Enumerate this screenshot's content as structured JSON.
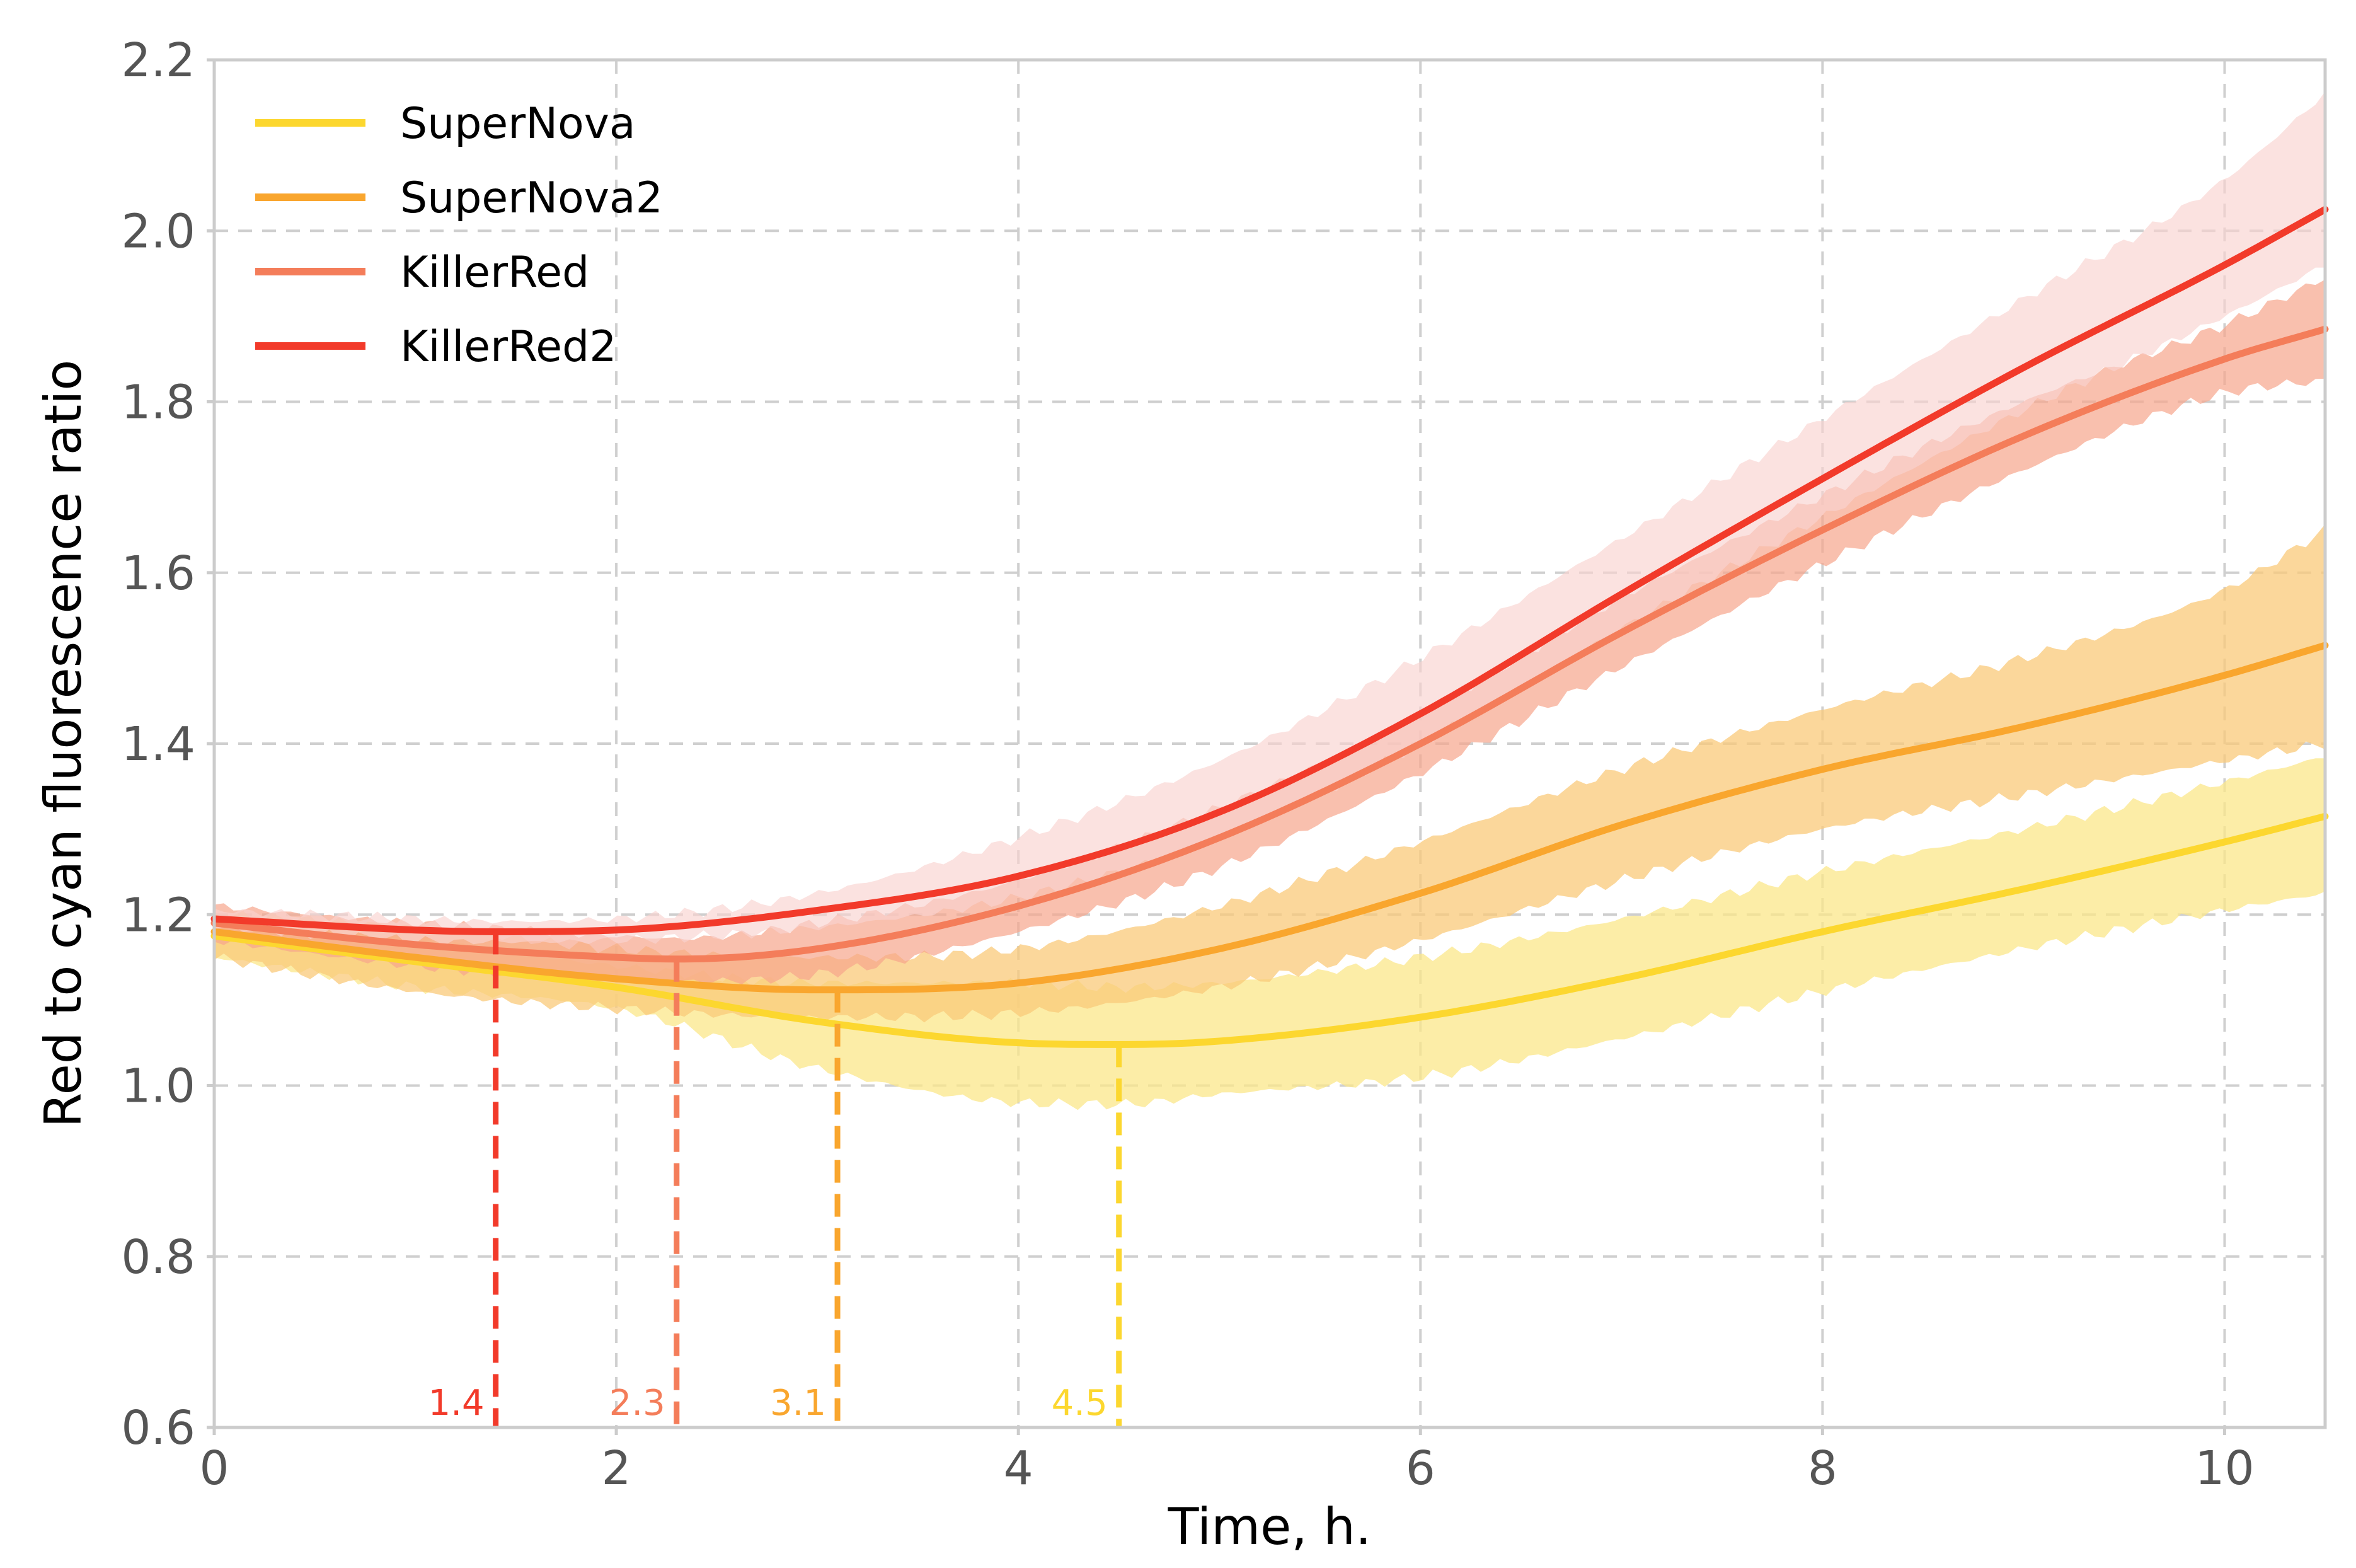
{
  "chart_data": {
    "type": "line",
    "title": "",
    "xlabel": "Time, h.",
    "ylabel": "Red to cyan fluorescence ratio",
    "xlim": [
      0,
      10.5
    ],
    "ylim": [
      0.6,
      2.2
    ],
    "xticks": [
      0,
      2,
      4,
      6,
      8,
      10
    ],
    "yticks": [
      0.6,
      0.8,
      1.0,
      1.2,
      1.4,
      1.6,
      1.8,
      2.0,
      2.2
    ],
    "xtick_labels": [
      "0",
      "2",
      "4",
      "6",
      "8",
      "10"
    ],
    "ytick_labels": [
      "0.6",
      "0.8",
      "1.0",
      "1.2",
      "1.4",
      "1.6",
      "1.8",
      "2.0",
      "2.2"
    ],
    "grid": true,
    "legend_position": "top-left",
    "series": [
      {
        "name": "SuperNova",
        "color": "#FCD72F",
        "band_color": "#FBE78A",
        "x": [
          0,
          1,
          2,
          3,
          4,
          4.5,
          5,
          6,
          7,
          8,
          9,
          10,
          10.5
        ],
        "y": [
          1.175,
          1.145,
          1.115,
          1.075,
          1.05,
          1.048,
          1.052,
          1.08,
          1.125,
          1.18,
          1.23,
          1.285,
          1.315
        ],
        "lower": [
          1.15,
          1.115,
          1.09,
          1.02,
          0.98,
          0.978,
          0.99,
          1.01,
          1.055,
          1.11,
          1.16,
          1.205,
          1.225
        ],
        "upper": [
          1.195,
          1.17,
          1.14,
          1.12,
          1.12,
          1.115,
          1.12,
          1.15,
          1.195,
          1.25,
          1.3,
          1.355,
          1.385
        ],
        "min_time": 4.5,
        "min_label": "4.5"
      },
      {
        "name": "SuperNova2",
        "color": "#F9A62E",
        "band_color": "#F9CA79",
        "x": [
          0,
          1,
          2,
          3,
          3.1,
          4,
          5,
          6,
          7,
          8,
          9,
          10,
          10.5
        ],
        "y": [
          1.18,
          1.15,
          1.125,
          1.112,
          1.112,
          1.12,
          1.16,
          1.225,
          1.305,
          1.37,
          1.42,
          1.48,
          1.515
        ],
        "lower": [
          1.15,
          1.11,
          1.09,
          1.08,
          1.08,
          1.085,
          1.115,
          1.17,
          1.24,
          1.3,
          1.34,
          1.38,
          1.4
        ],
        "upper": [
          1.2,
          1.185,
          1.16,
          1.15,
          1.15,
          1.16,
          1.21,
          1.285,
          1.37,
          1.44,
          1.5,
          1.58,
          1.65
        ],
        "min_time": 3.1,
        "min_label": "3.1"
      },
      {
        "name": "KillerRed",
        "color": "#F47D5A",
        "band_color": "#F6A58C",
        "x": [
          0,
          1,
          2,
          2.3,
          3,
          4,
          5,
          6,
          7,
          8,
          9,
          10,
          10.5
        ],
        "y": [
          1.19,
          1.165,
          1.15,
          1.148,
          1.16,
          1.21,
          1.29,
          1.4,
          1.53,
          1.65,
          1.76,
          1.85,
          1.885
        ],
        "lower": [
          1.17,
          1.14,
          1.125,
          1.122,
          1.13,
          1.18,
          1.255,
          1.365,
          1.49,
          1.61,
          1.72,
          1.81,
          1.825
        ],
        "upper": [
          1.21,
          1.19,
          1.175,
          1.172,
          1.19,
          1.24,
          1.325,
          1.435,
          1.57,
          1.69,
          1.8,
          1.89,
          1.945
        ],
        "min_time": 2.3,
        "min_label": "2.3"
      },
      {
        "name": "KillerRed2",
        "color": "#F23A2A",
        "band_color": "#F9D3D0",
        "x": [
          0,
          1,
          1.4,
          2,
          3,
          4,
          5,
          6,
          7,
          8,
          9,
          10,
          10.5
        ],
        "y": [
          1.195,
          1.182,
          1.18,
          1.182,
          1.205,
          1.245,
          1.32,
          1.435,
          1.575,
          1.71,
          1.84,
          1.96,
          2.025
        ],
        "lower": [
          1.185,
          1.17,
          1.168,
          1.17,
          1.185,
          1.22,
          1.29,
          1.4,
          1.535,
          1.665,
          1.79,
          1.9,
          1.96
        ],
        "upper": [
          1.205,
          1.195,
          1.192,
          1.195,
          1.225,
          1.29,
          1.38,
          1.5,
          1.64,
          1.78,
          1.92,
          2.06,
          2.16
        ],
        "min_time": 1.4,
        "min_label": "1.4"
      }
    ]
  }
}
